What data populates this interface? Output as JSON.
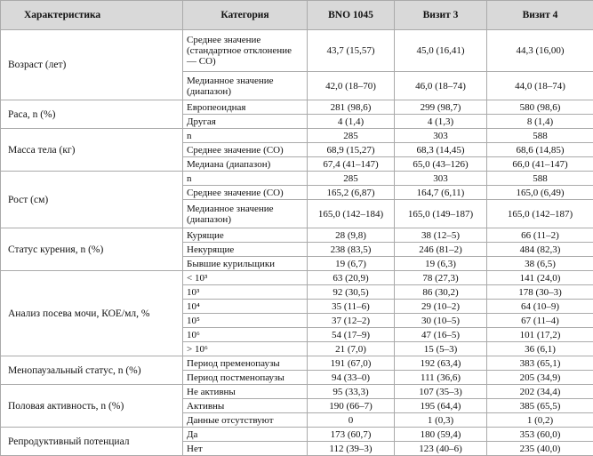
{
  "header": [
    "Характеристика",
    "Категория",
    "BNO 1045",
    "Визит 3",
    "Визит 4"
  ],
  "groups": [
    {
      "label": "Возраст (лет)",
      "rows": [
        [
          "Среднее значение (стандартное отклонение — СО)",
          "43,7 (15,57)",
          "45,0 (16,41)",
          "44,3 (16,00)"
        ],
        [
          "Медианное значение (диапазон)",
          "42,0 (18–70)",
          "46,0 (18–74)",
          "44,0 (18–74)"
        ]
      ]
    },
    {
      "label": "Раса, n (%)",
      "rows": [
        [
          "Европеоидная",
          "281 (98,6)",
          "299 (98,7)",
          "580 (98,6)"
        ],
        [
          "Другая",
          "4 (1,4)",
          "4 (1,3)",
          "8 (1,4)"
        ]
      ]
    },
    {
      "label": "Масса тела (кг)",
      "rows": [
        [
          "n",
          "285",
          "303",
          "588"
        ],
        [
          "Среднее значение (СО)",
          "68,9 (15,27)",
          "68,3 (14,45)",
          "68,6 (14,85)"
        ],
        [
          "Медиана (диапазон)",
          "67,4 (41–147)",
          "65,0 (43–126)",
          "66,0 (41–147)"
        ]
      ]
    },
    {
      "label": "Рост (см)",
      "rows": [
        [
          "n",
          "285",
          "303",
          "588"
        ],
        [
          "Среднее значение (СО)",
          "165,2 (6,87)",
          "164,7 (6,11)",
          "165,0 (6,49)"
        ],
        [
          "Медианное значение (диапазон)",
          "165,0 (142–184)",
          "165,0 (149–187)",
          "165,0 (142–187)"
        ]
      ]
    },
    {
      "label": "Статус курения, n (%)",
      "rows": [
        [
          "Курящие",
          "28 (9,8)",
          "38 (12–5)",
          "66 (11–2)"
        ],
        [
          "Некурящие",
          "238 (83,5)",
          "246 (81–2)",
          "484 (82,3)"
        ],
        [
          "Бывшие курильщики",
          "19 (6,7)",
          "19 (6,3)",
          "38 (6,5)"
        ]
      ]
    },
    {
      "label": "Анализ посева мочи, КОЕ/мл, %",
      "rows": [
        [
          "< 10³",
          "63 (20,9)",
          "78 (27,3)",
          "141 (24,0)"
        ],
        [
          "10³",
          "92 (30,5)",
          "86 (30,2)",
          "178 (30–3)"
        ],
        [
          "10⁴",
          "35 (11–6)",
          "29 (10–2)",
          "64 (10–9)"
        ],
        [
          "10⁵",
          "37 (12–2)",
          "30 (10–5)",
          "67 (11–4)"
        ],
        [
          "10⁶",
          "54 (17–9)",
          "47 (16–5)",
          "101 (17,2)"
        ],
        [
          "> 10⁶",
          "21 (7,0)",
          "15 (5–3)",
          "36 (6,1)"
        ]
      ]
    },
    {
      "label": "Менопаузальный статус, n (%)",
      "rows": [
        [
          "Период пременопаузы",
          "191 (67,0)",
          "192 (63,4)",
          "383 (65,1)"
        ],
        [
          "Период постменопаузы",
          "94 (33–0)",
          "111 (36,6)",
          "205 (34,9)"
        ]
      ]
    },
    {
      "label": "Половая активность, n (%)",
      "rows": [
        [
          "Не активны",
          "95 (33,3)",
          "107 (35–3)",
          "202 (34,4)"
        ],
        [
          "Активны",
          "190 (66–7)",
          "195 (64,4)",
          "385 (65,5)"
        ],
        [
          "Данные отсутствуют",
          "0",
          "1 (0,3)",
          "1 (0,2)"
        ]
      ]
    },
    {
      "label": "Репродуктивный потенциал",
      "rows": [
        [
          "Да",
          "173 (60,7)",
          "180 (59,4)",
          "353 (60,0)"
        ],
        [
          "Нет",
          "112 (39–3)",
          "123 (40–6)",
          "235 (40,0)"
        ]
      ]
    }
  ]
}
